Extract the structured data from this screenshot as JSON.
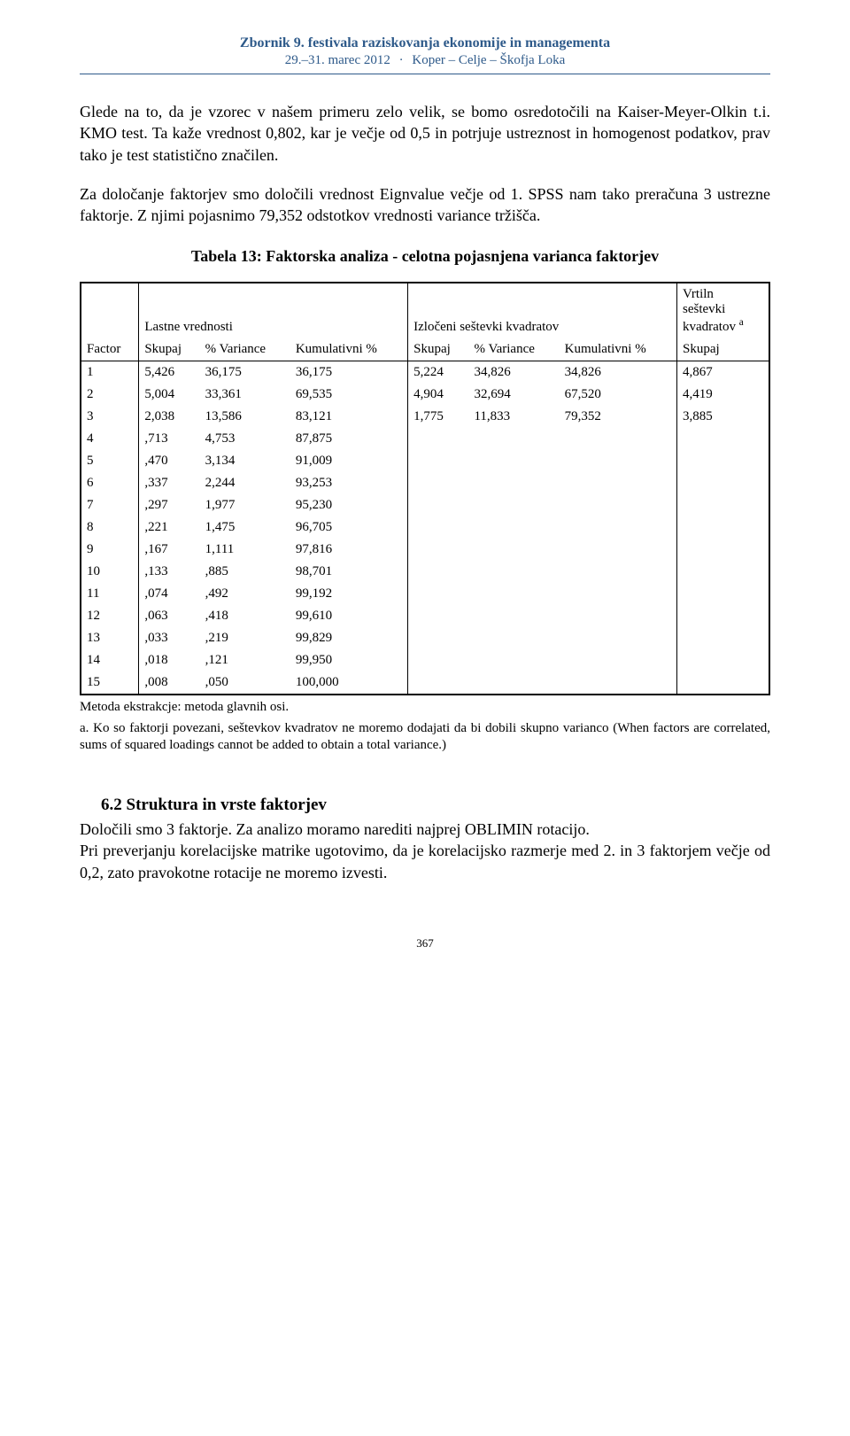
{
  "header": {
    "title": "Zbornik 9. festivala raziskovanja ekonomije in managementa",
    "sub_date": "29.–31. marec 2012",
    "sub_places": "Koper – Celje – Škofja Loka",
    "dot": "·",
    "line_color": "#2e5a8a"
  },
  "para1": "Glede na to, da je vzorec v našem primeru zelo velik, se bomo osredotočili na Kaiser-Meyer-Olkin t.i. KMO test. Ta kaže vrednost 0,802, kar je večje od 0,5 in potrjuje ustreznost in homogenost podatkov, prav tako je test statistično značilen.",
  "para2": "Za določanje faktorjev smo določili vrednost Eignvalue večje od 1. SPSS nam tako preračuna 3 ustrezne faktorje. Z njimi pojasnimo 79,352 odstotkov vrednosti variance tržišča.",
  "table": {
    "title": "Tabela 13: Faktorska analiza - celotna pojasnjena varianca faktorjev",
    "group_headers": {
      "g1": "Lastne vrednosti",
      "g2": "Izločeni seštevki kvadratov",
      "g3_line1": "Vrtiln",
      "g3_line2": "seštevki",
      "g3_line3": "kvadratov ",
      "g3_sup": "a"
    },
    "col_headers": {
      "c0": "Factor",
      "c1": "Skupaj",
      "c2": "% Variance",
      "c3": "Kumulativni %",
      "c4": "Skupaj",
      "c5": "% Variance",
      "c6": "Kumulativni %",
      "c7": "Skupaj"
    },
    "rows": [
      {
        "f": "1",
        "s1": "5,426",
        "v1": "36,175",
        "k1": "36,175",
        "s2": "5,224",
        "v2": "34,826",
        "k2": "34,826",
        "s3": "4,867"
      },
      {
        "f": "2",
        "s1": "5,004",
        "v1": "33,361",
        "k1": "69,535",
        "s2": "4,904",
        "v2": "32,694",
        "k2": "67,520",
        "s3": "4,419"
      },
      {
        "f": "3",
        "s1": "2,038",
        "v1": "13,586",
        "k1": "83,121",
        "s2": "1,775",
        "v2": "11,833",
        "k2": "79,352",
        "s3": "3,885"
      },
      {
        "f": "4",
        "s1": ",713",
        "v1": "4,753",
        "k1": "87,875",
        "s2": "",
        "v2": "",
        "k2": "",
        "s3": ""
      },
      {
        "f": "5",
        "s1": ",470",
        "v1": "3,134",
        "k1": "91,009",
        "s2": "",
        "v2": "",
        "k2": "",
        "s3": ""
      },
      {
        "f": "6",
        "s1": ",337",
        "v1": "2,244",
        "k1": "93,253",
        "s2": "",
        "v2": "",
        "k2": "",
        "s3": ""
      },
      {
        "f": "7",
        "s1": ",297",
        "v1": "1,977",
        "k1": "95,230",
        "s2": "",
        "v2": "",
        "k2": "",
        "s3": ""
      },
      {
        "f": "8",
        "s1": ",221",
        "v1": "1,475",
        "k1": "96,705",
        "s2": "",
        "v2": "",
        "k2": "",
        "s3": ""
      },
      {
        "f": "9",
        "s1": ",167",
        "v1": "1,111",
        "k1": "97,816",
        "s2": "",
        "v2": "",
        "k2": "",
        "s3": ""
      },
      {
        "f": "10",
        "s1": ",133",
        "v1": ",885",
        "k1": "98,701",
        "s2": "",
        "v2": "",
        "k2": "",
        "s3": ""
      },
      {
        "f": "11",
        "s1": ",074",
        "v1": ",492",
        "k1": "99,192",
        "s2": "",
        "v2": "",
        "k2": "",
        "s3": ""
      },
      {
        "f": "12",
        "s1": ",063",
        "v1": ",418",
        "k1": "99,610",
        "s2": "",
        "v2": "",
        "k2": "",
        "s3": ""
      },
      {
        "f": "13",
        "s1": ",033",
        "v1": ",219",
        "k1": "99,829",
        "s2": "",
        "v2": "",
        "k2": "",
        "s3": ""
      },
      {
        "f": "14",
        "s1": ",018",
        "v1": ",121",
        "k1": "99,950",
        "s2": "",
        "v2": "",
        "k2": "",
        "s3": ""
      },
      {
        "f": "15",
        "s1": ",008",
        "v1": ",050",
        "k1": "100,000",
        "s2": "",
        "v2": "",
        "k2": "",
        "s3": ""
      }
    ]
  },
  "footnote1": "Metoda ekstrakcje: metoda glavnih osi.",
  "footnote2": "a. Ko so faktorji povezani, seštevkov kvadratov ne moremo dodajati da bi dobili skupno varianco (When factors are correlated, sums of squared loadings cannot be added to obtain a total variance.)",
  "section": {
    "heading": "6.2 Struktura in vrste faktorjev",
    "p1": "Določili smo 3 faktorje. Za analizo moramo narediti najprej OBLIMIN rotacijo.",
    "p2": "Pri preverjanju korelacijske matrike ugotovimo, da je korelacijsko razmerje med 2. in 3 faktorjem večje od 0,2, zato pravokotne rotacije ne moremo izvesti."
  },
  "page_number": "367"
}
